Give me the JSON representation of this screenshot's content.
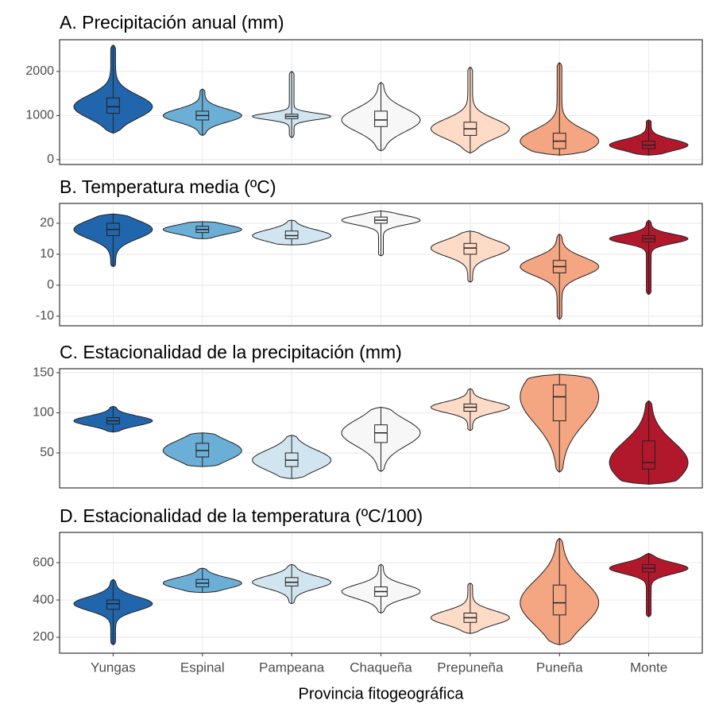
{
  "chart_data": [
    {
      "type": "violin",
      "title": "A. Precipitación anual (mm)",
      "colors": [
        "#2166ac",
        "#6baed6",
        "#d1e5f0",
        "#f7f7f7",
        "#fddbc7",
        "#f4a582",
        "#b2182b"
      ],
      "min": [
        600,
        550,
        500,
        200,
        150,
        100,
        100
      ],
      "q1": [
        1050,
        900,
        930,
        750,
        550,
        250,
        250
      ],
      "median": [
        1200,
        1000,
        980,
        900,
        700,
        420,
        330
      ],
      "q3": [
        1400,
        1100,
        1030,
        1100,
        850,
        600,
        420
      ],
      "max": [
        2600,
        1600,
        2000,
        1750,
        2100,
        2200,
        900
      ],
      "ylim": [
        -110,
        2720
      ],
      "yticks": [
        0,
        1000,
        2000
      ],
      "grid": true
    },
    {
      "type": "violin",
      "title": "B. Temperatura media (ºC)",
      "colors": [
        "#2166ac",
        "#6baed6",
        "#d1e5f0",
        "#f7f7f7",
        "#fddbc7",
        "#f4a582",
        "#b2182b"
      ],
      "min": [
        6,
        15,
        13,
        9.5,
        1,
        -11,
        -3
      ],
      "q1": [
        16,
        17,
        15,
        20,
        10,
        4,
        14
      ],
      "median": [
        18,
        18,
        16,
        21,
        12,
        6,
        15
      ],
      "q3": [
        20,
        19,
        17.5,
        22,
        13.5,
        8,
        16
      ],
      "max": [
        23,
        20.5,
        21,
        24,
        17.5,
        16.5,
        21
      ],
      "ylim": [
        -13.1,
        26.4
      ],
      "yticks": [
        -10,
        0,
        10,
        20
      ],
      "grid": true
    },
    {
      "type": "violin",
      "title": "C. Estacionalidad de la precipitación (mm)",
      "colors": [
        "#2166ac",
        "#6baed6",
        "#d1e5f0",
        "#f7f7f7",
        "#fddbc7",
        "#f4a582",
        "#b2182b"
      ],
      "min": [
        76,
        33,
        18,
        27,
        78,
        26,
        11
      ],
      "q1": [
        86,
        45,
        33,
        63,
        102,
        90,
        30
      ],
      "median": [
        90,
        53,
        41,
        75,
        107,
        120,
        38
      ],
      "q3": [
        94,
        62,
        50,
        85,
        111,
        135,
        65
      ],
      "max": [
        108,
        75,
        72,
        107,
        130,
        148,
        115
      ],
      "ylim": [
        6.4,
        155
      ],
      "yticks": [
        50,
        100,
        150
      ],
      "grid": true
    },
    {
      "type": "violin",
      "title": "D. Estacionalidad de la temperatura (ºC/100)",
      "categories": [
        "Yungas",
        "Espinal",
        "Pampeana",
        "Chaqueña",
        "Prepuneña",
        "Puneña",
        "Monte"
      ],
      "xlabel": "Provincia fitogeográfica",
      "colors": [
        "#2166ac",
        "#6baed6",
        "#d1e5f0",
        "#f7f7f7",
        "#fddbc7",
        "#f4a582",
        "#b2182b"
      ],
      "min": [
        160,
        440,
        380,
        330,
        220,
        160,
        310
      ],
      "q1": [
        350,
        470,
        475,
        420,
        280,
        320,
        550
      ],
      "median": [
        380,
        490,
        495,
        445,
        305,
        385,
        570
      ],
      "q3": [
        400,
        510,
        520,
        470,
        330,
        480,
        590
      ],
      "max": [
        510,
        570,
        590,
        590,
        490,
        730,
        650
      ],
      "ylim": [
        115,
        762
      ],
      "yticks": [
        200,
        400,
        600
      ],
      "grid": true
    }
  ]
}
